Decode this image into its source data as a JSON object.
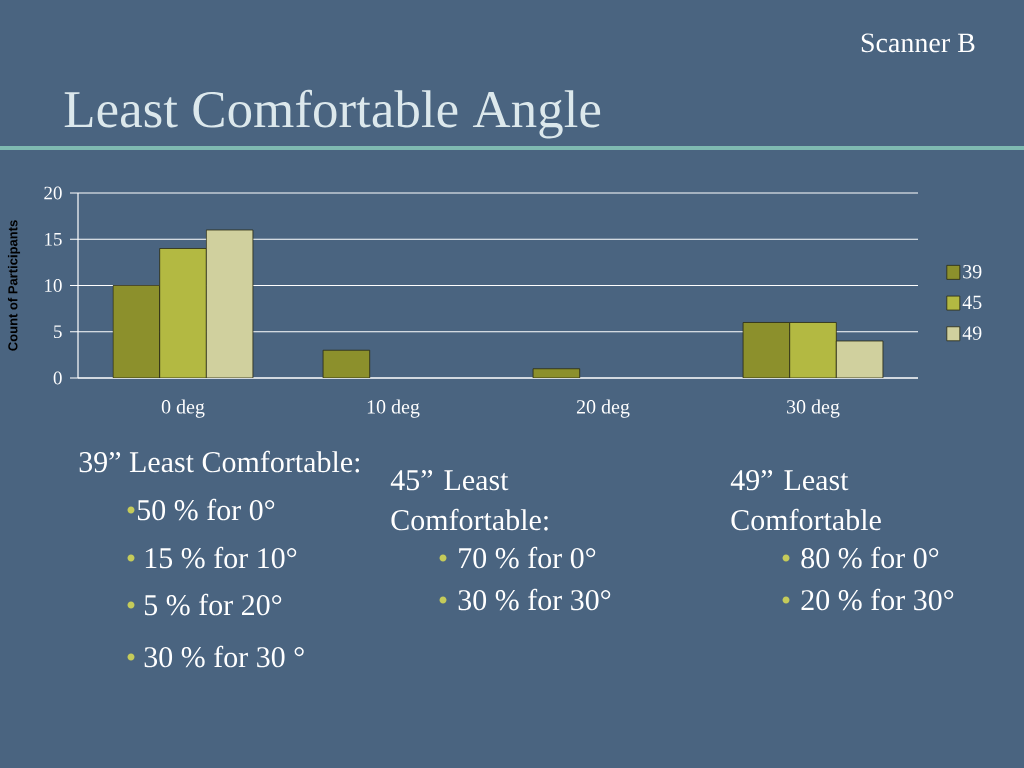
{
  "chart_data": {
    "type": "bar",
    "title": "Least Comfortable Angle",
    "subtitle": "Scanner B",
    "ylabel": "Count of Participants",
    "categories": [
      "0 deg",
      "10 deg",
      "20 deg",
      "30 deg"
    ],
    "series": [
      {
        "name": "39",
        "color": "#8c902c",
        "values": [
          10,
          3,
          1,
          6
        ]
      },
      {
        "name": "45",
        "color": "#b3b942",
        "values": [
          14,
          null,
          null,
          6
        ]
      },
      {
        "name": "49",
        "color": "#d0d09e",
        "values": [
          16,
          null,
          null,
          4
        ]
      }
    ],
    "ylim": [
      0,
      20
    ],
    "yticks": [
      0,
      5,
      10,
      15,
      20
    ],
    "grid": "y",
    "legend": "right",
    "annotations": [
      "39” Least Comfortable:",
      "50 % for 0°",
      "15 % for 10°",
      "5 % for 20°",
      "30 %  for 30 °",
      "45” Least Comfortable:",
      "70 % for 0°",
      "30 % for 30°",
      "49” Least Comfortable",
      "80 % for 0°",
      "20 % for 30°"
    ]
  }
}
